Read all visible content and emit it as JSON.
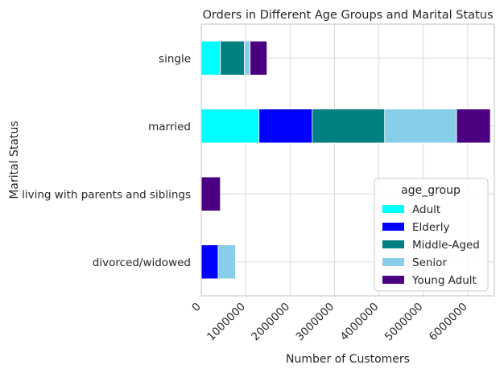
{
  "chart_data": {
    "type": "bar",
    "orientation": "horizontal",
    "stacked": true,
    "title": "Orders in Different Age Groups and Marital Status",
    "xlabel": "Number of Customers",
    "ylabel": "Marital Status",
    "xlim": [
      0,
      6600000
    ],
    "xticks": [
      0,
      1000000,
      2000000,
      3000000,
      4000000,
      5000000,
      6000000
    ],
    "xtick_labels": [
      "0",
      "1000000",
      "2000000",
      "3000000",
      "4000000",
      "5000000",
      "6000000"
    ],
    "grid": true,
    "categories": [
      "divorced/widowed",
      "living with parents and siblings",
      "married",
      "single"
    ],
    "series": [
      {
        "name": "Adult",
        "color": "#00FFFF",
        "values": [
          0,
          0,
          1300000,
          430000
        ]
      },
      {
        "name": "Elderly",
        "color": "#0000FF",
        "values": [
          380000,
          0,
          1200000,
          0
        ]
      },
      {
        "name": "Middle-Aged",
        "color": "#008080",
        "values": [
          0,
          0,
          1630000,
          540000
        ]
      },
      {
        "name": "Senior",
        "color": "#87CEEB",
        "values": [
          390000,
          0,
          1620000,
          130000
        ]
      },
      {
        "name": "Young Adult",
        "color": "#4B0082",
        "values": [
          0,
          430000,
          760000,
          380000
        ]
      }
    ],
    "legend": {
      "title": "age_group",
      "placement": "lower-right"
    }
  }
}
